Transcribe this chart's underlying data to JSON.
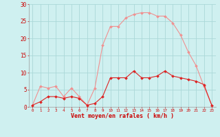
{
  "hours": [
    0,
    1,
    2,
    3,
    4,
    5,
    6,
    7,
    8,
    9,
    10,
    11,
    12,
    13,
    14,
    15,
    16,
    17,
    18,
    19,
    20,
    21,
    22,
    23
  ],
  "wind_avg": [
    0.5,
    1.5,
    3,
    3,
    2.5,
    3,
    2.5,
    0.5,
    1,
    3,
    8.5,
    8.5,
    8.5,
    10.5,
    8.5,
    8.5,
    9,
    10.5,
    9,
    8.5,
    8,
    7.5,
    6.5,
    0.5
  ],
  "wind_gust": [
    0.5,
    6,
    5.5,
    6,
    3,
    5.5,
    3,
    0.5,
    5.5,
    18,
    23.5,
    23.5,
    26,
    27,
    27.5,
    27.5,
    26.5,
    26.5,
    24.5,
    21,
    16,
    12,
    6,
    0.5
  ],
  "ylim": [
    0,
    30
  ],
  "yticks": [
    0,
    5,
    10,
    15,
    20,
    25,
    30
  ],
  "xlabel": "Vent moyen/en rafales ( km/h )",
  "bg_color": "#cff0f0",
  "grid_color": "#aad8d8",
  "line_color_avg": "#dd2222",
  "line_color_gust": "#f09090",
  "marker_color_avg": "#dd2222",
  "marker_color_gust": "#f09090",
  "tick_color": "#cc0000",
  "xlabel_color": "#cc0000"
}
